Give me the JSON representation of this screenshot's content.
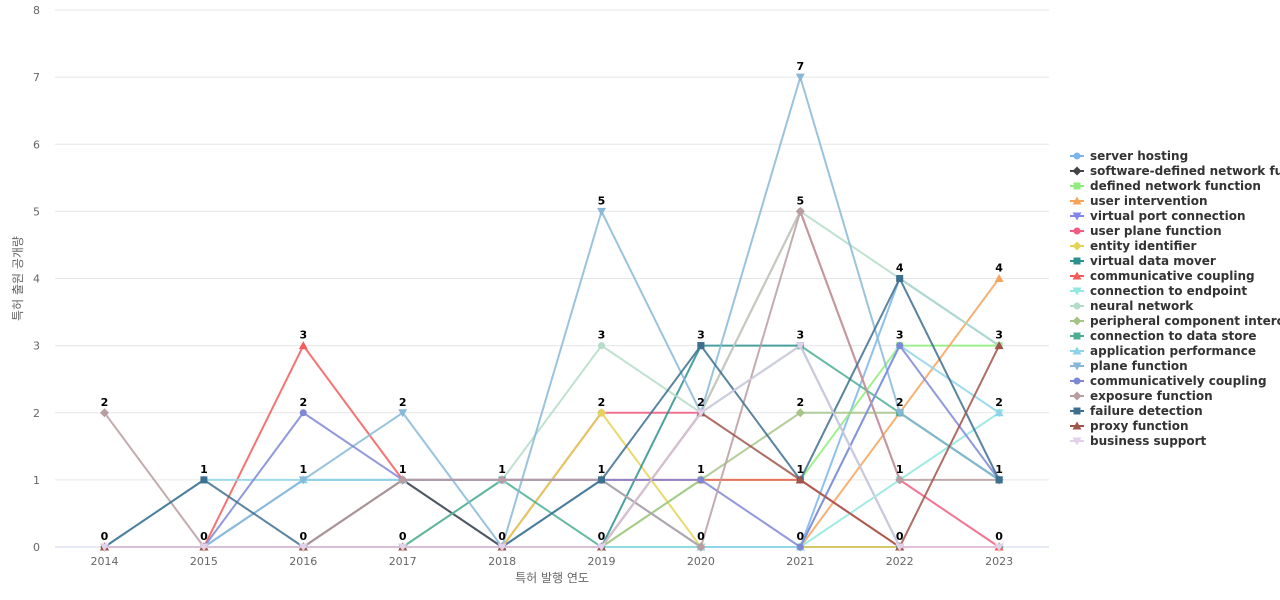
{
  "chart_data": {
    "type": "line",
    "xlabel": "특허 발행 연도",
    "ylabel": "특허 출원 공개량",
    "x": [
      "2014",
      "2015",
      "2016",
      "2017",
      "2018",
      "2019",
      "2020",
      "2021",
      "2022",
      "2023"
    ],
    "ylim": [
      0,
      8
    ],
    "yticks": [
      "0",
      "1",
      "2",
      "3",
      "4",
      "5",
      "6",
      "7",
      "8"
    ],
    "grid": "horizontal",
    "legend_position": "right",
    "series": [
      {
        "name": "server hosting",
        "color": "#7cb5ec",
        "marker": "circle",
        "values": [
          0,
          0,
          1,
          1,
          0,
          1,
          0,
          0,
          4,
          3
        ]
      },
      {
        "name": "software-defined network fu...",
        "color": "#434348",
        "marker": "diamond",
        "values": [
          0,
          0,
          0,
          1,
          0,
          0,
          0,
          0,
          0,
          0
        ]
      },
      {
        "name": "defined network function",
        "color": "#90ed7d",
        "marker": "square",
        "values": [
          0,
          0,
          0,
          0,
          0,
          0,
          1,
          1,
          3,
          3
        ]
      },
      {
        "name": "user intervention",
        "color": "#f7a35c",
        "marker": "triangle",
        "values": [
          0,
          0,
          0,
          0,
          0,
          0,
          0,
          0,
          2,
          4
        ]
      },
      {
        "name": "virtual port connection",
        "color": "#8085e9",
        "marker": "triangle-down",
        "values": [
          0,
          0,
          0,
          0,
          0,
          0,
          0,
          0,
          0,
          0
        ]
      },
      {
        "name": "user plane function",
        "color": "#f15c80",
        "marker": "circle",
        "values": [
          0,
          0,
          0,
          0,
          0,
          2,
          2,
          5,
          1,
          0
        ]
      },
      {
        "name": "entity identifier",
        "color": "#e4d354",
        "marker": "diamond",
        "values": [
          0,
          0,
          0,
          0,
          0,
          2,
          0,
          0,
          0,
          0
        ]
      },
      {
        "name": "virtual data mover",
        "color": "#2b908f",
        "marker": "square",
        "values": [
          0,
          0,
          0,
          0,
          0,
          0,
          3,
          3,
          0,
          0
        ]
      },
      {
        "name": "communicative coupling",
        "color": "#f45b5b",
        "marker": "triangle",
        "values": [
          0,
          0,
          3,
          1,
          1,
          1,
          1,
          1,
          0,
          0
        ]
      },
      {
        "name": "connection to endpoint",
        "color": "#91e8e1",
        "marker": "triangle-down",
        "values": [
          0,
          0,
          0,
          0,
          0,
          0,
          0,
          0,
          1,
          2
        ]
      },
      {
        "name": "neural network",
        "color": "#b5dcc8",
        "marker": "circle",
        "values": [
          0,
          0,
          0,
          0,
          1,
          3,
          2,
          5,
          4,
          3
        ]
      },
      {
        "name": "peripheral component interc...",
        "color": "#a6c48a",
        "marker": "diamond",
        "values": [
          0,
          0,
          0,
          0,
          0,
          0,
          1,
          2,
          2,
          1
        ]
      },
      {
        "name": "connection to data store",
        "color": "#4caf93",
        "marker": "square",
        "values": [
          0,
          0,
          0,
          0,
          1,
          0,
          2,
          3,
          2,
          1
        ]
      },
      {
        "name": "application performance",
        "color": "#8fd3ea",
        "marker": "triangle",
        "values": [
          0,
          1,
          1,
          1,
          1,
          1,
          0,
          0,
          3,
          2
        ]
      },
      {
        "name": "plane function",
        "color": "#88b8d8",
        "marker": "triangle-down",
        "values": [
          0,
          0,
          1,
          2,
          0,
          5,
          2,
          7,
          2,
          1
        ]
      },
      {
        "name": "communicatively coupling",
        "color": "#7e87d6",
        "marker": "circle",
        "values": [
          0,
          0,
          2,
          1,
          1,
          1,
          1,
          0,
          3,
          1
        ]
      },
      {
        "name": "exposure function",
        "color": "#b89ea0",
        "marker": "diamond",
        "values": [
          2,
          0,
          0,
          1,
          1,
          1,
          0,
          5,
          1,
          1
        ]
      },
      {
        "name": "failure detection",
        "color": "#3d6f8e",
        "marker": "square",
        "values": [
          0,
          1,
          0,
          0,
          0,
          1,
          3,
          1,
          4,
          1
        ]
      },
      {
        "name": "proxy function",
        "color": "#a0554a",
        "marker": "triangle",
        "values": [
          0,
          0,
          0,
          0,
          0,
          0,
          2,
          1,
          0,
          3
        ]
      },
      {
        "name": "business support",
        "color": "#e3d0ea",
        "marker": "triangle-down",
        "values": [
          0,
          0,
          0,
          0,
          0,
          0,
          2,
          3,
          0,
          0
        ]
      }
    ],
    "point_labels": [
      {
        "x": "2014",
        "y": 2,
        "text": "2"
      },
      {
        "x": "2014",
        "y": 0,
        "text": "0"
      },
      {
        "x": "2015",
        "y": 1,
        "text": "1"
      },
      {
        "x": "2015",
        "y": 0,
        "text": "0"
      },
      {
        "x": "2016",
        "y": 3,
        "text": "3"
      },
      {
        "x": "2016",
        "y": 2,
        "text": "2"
      },
      {
        "x": "2016",
        "y": 1,
        "text": "1"
      },
      {
        "x": "2016",
        "y": 0,
        "text": "0"
      },
      {
        "x": "2017",
        "y": 2,
        "text": "2"
      },
      {
        "x": "2017",
        "y": 1,
        "text": "1"
      },
      {
        "x": "2017",
        "y": 0,
        "text": "0"
      },
      {
        "x": "2018",
        "y": 1,
        "text": "1"
      },
      {
        "x": "2018",
        "y": 0,
        "text": "0"
      },
      {
        "x": "2019",
        "y": 5,
        "text": "5"
      },
      {
        "x": "2019",
        "y": 3,
        "text": "3"
      },
      {
        "x": "2019",
        "y": 2,
        "text": "2"
      },
      {
        "x": "2019",
        "y": 1,
        "text": "1"
      },
      {
        "x": "2019",
        "y": 0,
        "text": "0"
      },
      {
        "x": "2020",
        "y": 3,
        "text": "3"
      },
      {
        "x": "2020",
        "y": 2,
        "text": "2"
      },
      {
        "x": "2020",
        "y": 1,
        "text": "1"
      },
      {
        "x": "2020",
        "y": 0,
        "text": "0"
      },
      {
        "x": "2021",
        "y": 7,
        "text": "7"
      },
      {
        "x": "2021",
        "y": 5,
        "text": "5"
      },
      {
        "x": "2021",
        "y": 3,
        "text": "3"
      },
      {
        "x": "2021",
        "y": 2,
        "text": "2"
      },
      {
        "x": "2021",
        "y": 1,
        "text": "1"
      },
      {
        "x": "2021",
        "y": 0,
        "text": "0"
      },
      {
        "x": "2022",
        "y": 4,
        "text": "4"
      },
      {
        "x": "2022",
        "y": 3,
        "text": "3"
      },
      {
        "x": "2022",
        "y": 2,
        "text": "2"
      },
      {
        "x": "2022",
        "y": 1,
        "text": "1"
      },
      {
        "x": "2022",
        "y": 0,
        "text": "0"
      },
      {
        "x": "2023",
        "y": 4,
        "text": "4"
      },
      {
        "x": "2023",
        "y": 3,
        "text": "3"
      },
      {
        "x": "2023",
        "y": 2,
        "text": "2"
      },
      {
        "x": "2023",
        "y": 1,
        "text": "1"
      },
      {
        "x": "2023",
        "y": 0,
        "text": "0"
      }
    ]
  }
}
